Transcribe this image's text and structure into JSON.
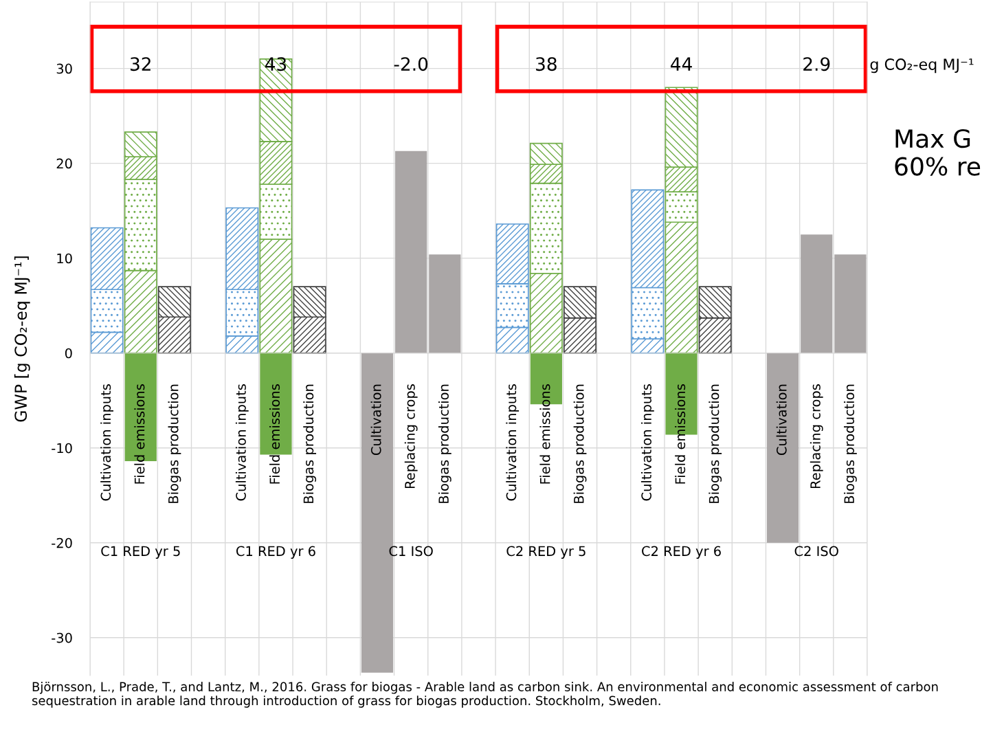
{
  "chart_data": {
    "type": "bar",
    "stacked": true,
    "ylabel": "GWP [g CO₂-eq MJ⁻¹]",
    "categories": [
      "Cultivation inputs",
      "Field emissions",
      "Biogas production",
      null,
      "Cultivation inputs",
      "Field emissions",
      "Biogas production",
      null,
      "Cultivation",
      "Replacing crops",
      "Biogas production",
      null,
      "Cultivation inputs",
      "Field emissions",
      "Biogas production",
      null,
      "Cultivation inputs",
      "Field emissions",
      "Biogas production",
      null,
      "Cultivation",
      "Replacing crops",
      "Biogas production"
    ],
    "series": [
      {
        "color": "#5b9bd5",
        "values": [
          2.2,
          null,
          null,
          null,
          1.8,
          null,
          null,
          null,
          null,
          null,
          null,
          null,
          2.7,
          null,
          null,
          null,
          1.5,
          null,
          null,
          null,
          null,
          null,
          null
        ]
      },
      {
        "color": "#5b9bd5",
        "values": [
          4.5,
          null,
          null,
          null,
          4.9,
          null,
          null,
          null,
          null,
          null,
          null,
          null,
          4.6,
          null,
          null,
          null,
          5.4,
          null,
          null,
          null,
          null,
          null,
          null
        ]
      },
      {
        "color": "#5b9bd5",
        "values": [
          6.5,
          null,
          null,
          null,
          8.6,
          null,
          null,
          null,
          null,
          null,
          null,
          null,
          6.3,
          null,
          null,
          null,
          10.3,
          null,
          null,
          null,
          null,
          null,
          null
        ]
      },
      {
        "color": "#70ad47",
        "values": [
          null,
          8.7,
          null,
          null,
          null,
          12.0,
          null,
          null,
          null,
          null,
          null,
          null,
          null,
          8.4,
          null,
          null,
          null,
          13.8,
          null,
          null,
          null,
          null,
          null
        ]
      },
      {
        "color": "#70ad47",
        "values": [
          null,
          9.6,
          null,
          null,
          null,
          5.8,
          null,
          null,
          null,
          null,
          null,
          null,
          null,
          9.5,
          null,
          null,
          null,
          3.2,
          null,
          null,
          null,
          null,
          null
        ]
      },
      {
        "color": "#70ad47",
        "values": [
          null,
          2.4,
          null,
          null,
          null,
          4.5,
          null,
          null,
          null,
          null,
          null,
          null,
          null,
          2.0,
          null,
          null,
          null,
          2.6,
          null,
          null,
          null,
          null,
          null
        ]
      },
      {
        "color": "#70ad47",
        "values": [
          null,
          2.6,
          null,
          null,
          null,
          8.7,
          null,
          null,
          null,
          null,
          null,
          null,
          null,
          2.2,
          null,
          null,
          null,
          8.4,
          null,
          null,
          null,
          null,
          null
        ]
      },
      {
        "color": "#404040",
        "values": [
          null,
          null,
          3.8,
          null,
          null,
          null,
          3.8,
          null,
          null,
          null,
          null,
          null,
          null,
          null,
          3.7,
          null,
          null,
          null,
          3.7,
          null,
          null,
          null,
          null
        ]
      },
      {
        "color": "#404040",
        "values": [
          null,
          null,
          3.2,
          null,
          null,
          null,
          3.2,
          null,
          null,
          null,
          null,
          null,
          null,
          null,
          3.3,
          null,
          null,
          null,
          3.3,
          null,
          null,
          null,
          null
        ]
      },
      {
        "color": "#aaa6a6",
        "values": [
          null,
          null,
          null,
          null,
          null,
          null,
          null,
          null,
          -33.7,
          21.3,
          10.4,
          null,
          null,
          null,
          null,
          null,
          null,
          null,
          null,
          null,
          -20.0,
          12.5,
          10.4
        ]
      },
      {
        "color": "#70ad47",
        "values": [
          null,
          -11.4,
          null,
          null,
          null,
          -10.7,
          null,
          null,
          null,
          null,
          null,
          null,
          null,
          -5.4,
          null,
          null,
          null,
          -8.6,
          null,
          null,
          null,
          null,
          null
        ]
      }
    ],
    "ylim": [
      -34,
      37
    ],
    "yticks": [
      -30,
      -20,
      -10,
      0,
      10,
      20,
      30
    ],
    "grid": true,
    "annotations": [
      "C1 RED yr 5",
      "C1 RED yr 6",
      "C1 ISO",
      "C2 RED yr 5",
      "C2 RED yr 6",
      "C2 ISO",
      "32",
      "43",
      "-2.0",
      "38",
      "44",
      "2.9",
      "g CO₂-eq MJ⁻¹",
      "Max G\n60% re",
      "Björnsson, L., Prade, T., and Lantz, M., 2016. Grass for biogas - Arable land as carbon sink. An environmental and economic assessment of carbon sequestration in arable land through introduction of grass for biogas production. Stockholm, Sweden."
    ]
  }
}
